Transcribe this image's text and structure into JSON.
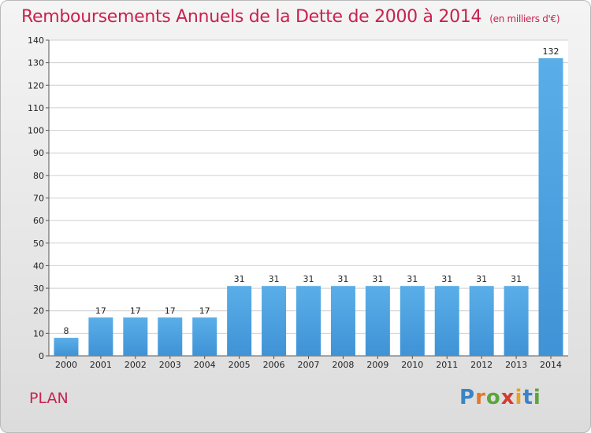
{
  "title": "Remboursements Annuels de la Dette de 2000 à 2014",
  "unit": "(en milliers d'€)",
  "commune": "PLAN",
  "logo": {
    "text": "Proxiti",
    "letters": [
      "P",
      "r",
      "o",
      "x",
      "i",
      "t",
      "i"
    ],
    "colors": [
      "#3a84c4",
      "#e8762a",
      "#5aa53c",
      "#d43b2f",
      "#e8a31c",
      "#3a84c4",
      "#5aa53c"
    ]
  },
  "colors": {
    "bar": "#3f93d6",
    "bar_light": "#5aaee8",
    "title": "#c8224e",
    "grid": "#cfcfcf"
  },
  "chart_data": {
    "type": "bar",
    "title": "Remboursements Annuels de la Dette de 2000 à 2014",
    "ylabel": "",
    "xlabel": "",
    "categories": [
      "2000",
      "2001",
      "2002",
      "2003",
      "2004",
      "2005",
      "2006",
      "2007",
      "2008",
      "2009",
      "2010",
      "2011",
      "2012",
      "2013",
      "2014"
    ],
    "values": [
      8,
      17,
      17,
      17,
      17,
      31,
      31,
      31,
      31,
      31,
      31,
      31,
      31,
      31,
      132
    ],
    "ylim": [
      0,
      140
    ],
    "yticks": [
      0,
      10,
      20,
      30,
      40,
      50,
      60,
      70,
      80,
      90,
      100,
      110,
      120,
      130,
      140
    ],
    "grid": true
  }
}
